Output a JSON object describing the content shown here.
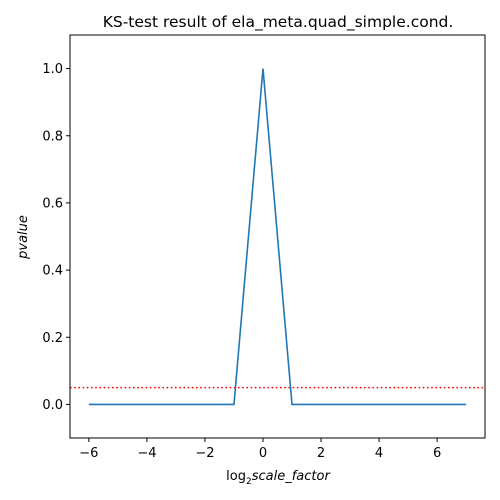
{
  "chart_data": {
    "type": "line",
    "title": "KS-test result of ela_meta.quad_simple.cond.",
    "xlabel": {
      "prefix": "log",
      "subscript": "2",
      "main": "scale_factor"
    },
    "ylabel": "pvalue",
    "xlim": [
      -6.65,
      7.65
    ],
    "ylim": [
      -0.1,
      1.1
    ],
    "xticks": [
      -6,
      -4,
      -2,
      0,
      2,
      4,
      6
    ],
    "xtick_labels": [
      "−6",
      "−4",
      "−2",
      "0",
      "2",
      "4",
      "6"
    ],
    "yticks": [
      0.0,
      0.2,
      0.4,
      0.6,
      0.8,
      1.0
    ],
    "ytick_labels": [
      "0.0",
      "0.2",
      "0.4",
      "0.6",
      "0.8",
      "1.0"
    ],
    "grid": false,
    "series": [
      {
        "color": "#1f77b4",
        "x": [
          -6,
          -5,
          -4,
          -3,
          -2,
          -1,
          0,
          1,
          2,
          3,
          4,
          5,
          6,
          7
        ],
        "y": [
          0,
          0,
          0,
          0,
          0,
          0,
          1.0,
          0,
          0,
          0,
          0,
          0,
          0,
          0
        ]
      }
    ],
    "threshold": {
      "y": 0.05,
      "color": "#ff0000",
      "style": "dotted"
    }
  }
}
